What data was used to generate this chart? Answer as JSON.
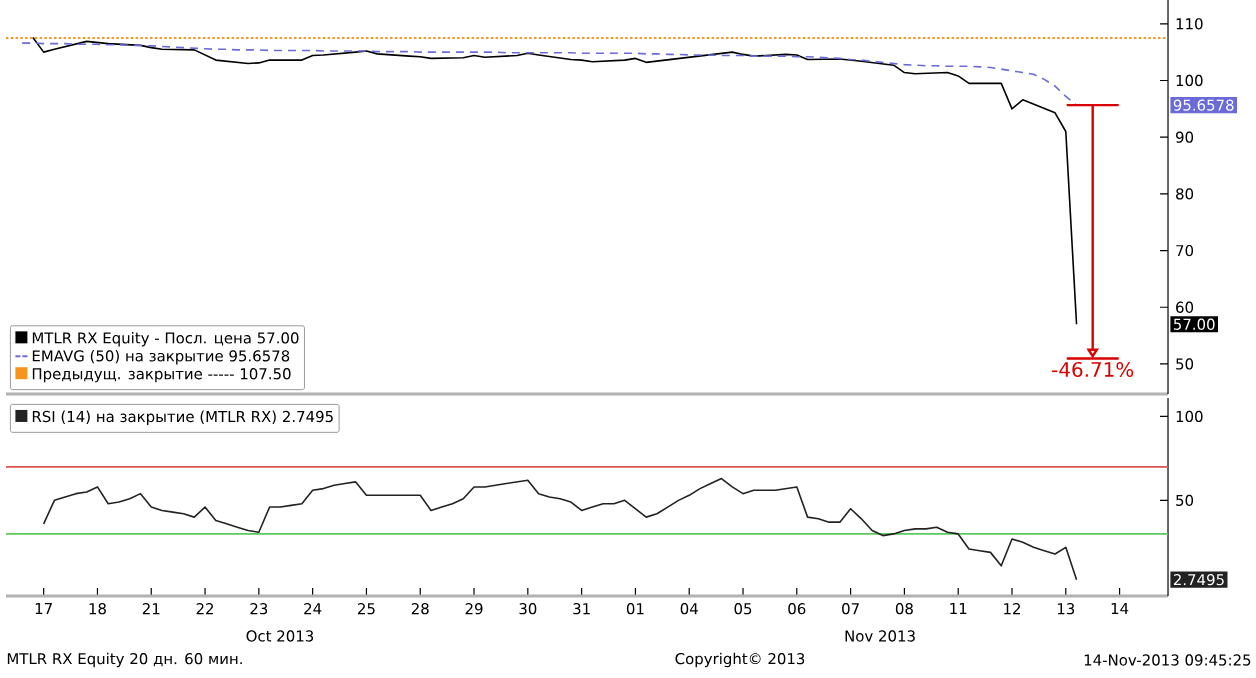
{
  "chart_data": [
    {
      "type": "line",
      "ylim": [
        44.7,
        114.2
      ],
      "yticks": [
        50,
        60,
        70,
        80,
        90,
        100,
        110
      ],
      "tick_labels": "y",
      "legend": "bottom left",
      "categories": [
        null,
        null,
        null,
        "17",
        null,
        null,
        null,
        null,
        "18",
        null,
        null,
        null,
        null,
        "21",
        null,
        null,
        null,
        null,
        "22",
        null,
        null,
        null,
        null,
        "23",
        null,
        null,
        null,
        null,
        "24",
        null,
        null,
        null,
        null,
        "25",
        null,
        null,
        null,
        null,
        "28",
        null,
        null,
        null,
        null,
        "29",
        null,
        null,
        null,
        null,
        "30",
        null,
        null,
        null,
        null,
        "31",
        null,
        null,
        null,
        null,
        "01",
        null,
        null,
        null,
        null,
        "04",
        null,
        null,
        null,
        null,
        "05",
        null,
        null,
        null,
        null,
        "06",
        null,
        null,
        null,
        null,
        "07",
        null,
        null,
        null,
        null,
        "08",
        null,
        null,
        null,
        null,
        "11",
        null,
        null,
        null,
        null,
        "12",
        null,
        null,
        null,
        null,
        "13",
        null,
        null,
        null,
        null,
        "14",
        null,
        null,
        null,
        null
      ],
      "series": [
        {
          "name": "MTLR RX Equity - Посл. цена 57.00",
          "color": "#000000",
          "line_style": "solid",
          "values": [
            null,
            null,
            107.6,
            105,
            105.5,
            null,
            null,
            106.9,
            106.7,
            106.5,
            null,
            null,
            106.2,
            105.8,
            105.5,
            null,
            null,
            105.4,
            104.5,
            103.6,
            null,
            null,
            103,
            103.1,
            103.6,
            null,
            null,
            103.6,
            104.4,
            104.5,
            null,
            null,
            105,
            105.2,
            104.7,
            null,
            null,
            104.3,
            104.2,
            103.9,
            null,
            null,
            104,
            104.4,
            104.1,
            null,
            null,
            104.4,
            104.8,
            104.5,
            null,
            null,
            103.7,
            103.6,
            103.3,
            null,
            null,
            103.6,
            103.9,
            103.2,
            null,
            null,
            null,
            null,
            null,
            null,
            null,
            105,
            104.6,
            104.3,
            null,
            null,
            104.6,
            104.5,
            103.7,
            null,
            null,
            103.8,
            103.6,
            103.4,
            null,
            null,
            102.7,
            101.4,
            101.2,
            null,
            null,
            101.4,
            100.8,
            99.5,
            null,
            null,
            99.5,
            95,
            96.6,
            null,
            null,
            94.3,
            91,
            57,
            null,
            null,
            null,
            null,
            null,
            null,
            null,
            null
          ]
        },
        {
          "name": "EMAVG (50) на закрытие 95.6578",
          "color": "#6b6bd8",
          "line_style": "dashed",
          "values": [
            null,
            106.6,
            106.6,
            106.5,
            106.5,
            106.5,
            106.4,
            106.4,
            106.4,
            106.3,
            106.3,
            106.2,
            106.2,
            106.1,
            106.0,
            105.9,
            105.8,
            105.7,
            105.6,
            105.5,
            105.5,
            105.4,
            105.4,
            105.4,
            105.3,
            105.3,
            105.3,
            105.3,
            105.3,
            105.2,
            105.2,
            105.2,
            105.2,
            105.2,
            105.1,
            105.1,
            105.1,
            105.1,
            105.0,
            105.0,
            105.0,
            105.0,
            105.0,
            105.0,
            105.0,
            105.0,
            104.9,
            104.9,
            104.9,
            104.9,
            104.9,
            104.9,
            104.9,
            104.8,
            104.8,
            104.8,
            104.8,
            104.8,
            104.8,
            104.7,
            104.7,
            104.6,
            104.6,
            104.5,
            104.5,
            104.5,
            104.4,
            104.4,
            104.4,
            104.3,
            104.3,
            104.3,
            104.3,
            104.2,
            104.2,
            104.1,
            104.0,
            103.9,
            103.7,
            103.6,
            103.4,
            103.2,
            103.0,
            102.8,
            102.7,
            102.6,
            102.6,
            102.5,
            102.5,
            102.5,
            102.4,
            102.3,
            102.0,
            101.7,
            101.4,
            101.1,
            100.2,
            99,
            97.2,
            95.6578,
            null,
            null,
            null,
            null,
            null,
            null,
            null,
            null
          ]
        }
      ],
      "ref_lines": [
        {
          "axis": "y",
          "value": 107.5,
          "label": "Предыдущ. закрытие -----  107.50",
          "color": "#f7941d",
          "line_style": "dotted"
        }
      ],
      "annotations": [
        "57.00",
        "95.6578",
        "-46.71%"
      ]
    },
    {
      "type": "line",
      "ylim": [
        -7,
        111
      ],
      "yticks": [
        50,
        100
      ],
      "legend": "top left",
      "categories": [
        null,
        null,
        null,
        "17",
        null,
        null,
        null,
        null,
        "18",
        null,
        null,
        null,
        null,
        "21",
        null,
        null,
        null,
        null,
        "22",
        null,
        null,
        null,
        null,
        "23",
        null,
        null,
        null,
        null,
        "24",
        null,
        null,
        null,
        null,
        "25",
        null,
        null,
        null,
        null,
        "28",
        null,
        null,
        null,
        null,
        "29",
        null,
        null,
        null,
        null,
        "30",
        null,
        null,
        null,
        null,
        "31",
        null,
        null,
        null,
        null,
        "01",
        null,
        null,
        null,
        null,
        "04",
        null,
        null,
        null,
        null,
        "05",
        null,
        null,
        null,
        null,
        "06",
        null,
        null,
        null,
        null,
        "07",
        null,
        null,
        null,
        null,
        "08",
        null,
        null,
        null,
        null,
        "11",
        null,
        null,
        null,
        null,
        "12",
        null,
        null,
        null,
        null,
        "13",
        null,
        null,
        null,
        null,
        "14",
        null,
        null,
        null,
        null
      ],
      "series": [
        {
          "name": "RSI (14) на закрытие (MTLR RX) 2.7495",
          "color": "#222222",
          "line_style": "solid",
          "values": [
            null,
            null,
            null,
            36,
            50,
            52,
            54,
            55,
            58,
            48,
            49,
            51,
            54,
            46,
            44,
            43,
            42,
            40,
            46,
            38,
            36,
            34,
            32,
            31,
            46,
            46,
            47,
            48,
            56,
            57,
            59,
            60,
            61,
            53,
            53,
            53,
            53,
            53,
            53,
            44,
            46,
            48,
            51,
            58,
            58,
            59,
            60,
            61,
            62,
            54,
            52,
            51,
            49,
            44,
            46,
            48,
            48,
            50,
            45,
            40,
            42,
            46,
            50,
            53,
            57,
            60,
            63,
            58,
            54,
            56,
            56,
            56,
            57,
            58,
            40,
            39,
            37,
            37,
            45,
            39,
            32,
            29,
            30,
            32,
            33,
            33,
            34,
            31,
            30,
            21,
            20,
            19,
            11,
            27,
            25,
            22,
            20,
            18,
            22,
            2.7495,
            null,
            null,
            null,
            null,
            null,
            null,
            null,
            null
          ]
        }
      ],
      "ref_lines": [
        {
          "axis": "y",
          "value": 70,
          "color": "#d9534f",
          "line_style": "solid"
        },
        {
          "axis": "y",
          "value": 30,
          "color": "#5cc85c",
          "line_style": "solid"
        }
      ],
      "annotations": [
        "Oct 2013",
        "Nov 2013",
        "MTLR RX Equity 20 дн. 60 мин.",
        "Copyright© 2013",
        "14-Nov-2013 09:45:25",
        "2.7495"
      ]
    }
  ]
}
